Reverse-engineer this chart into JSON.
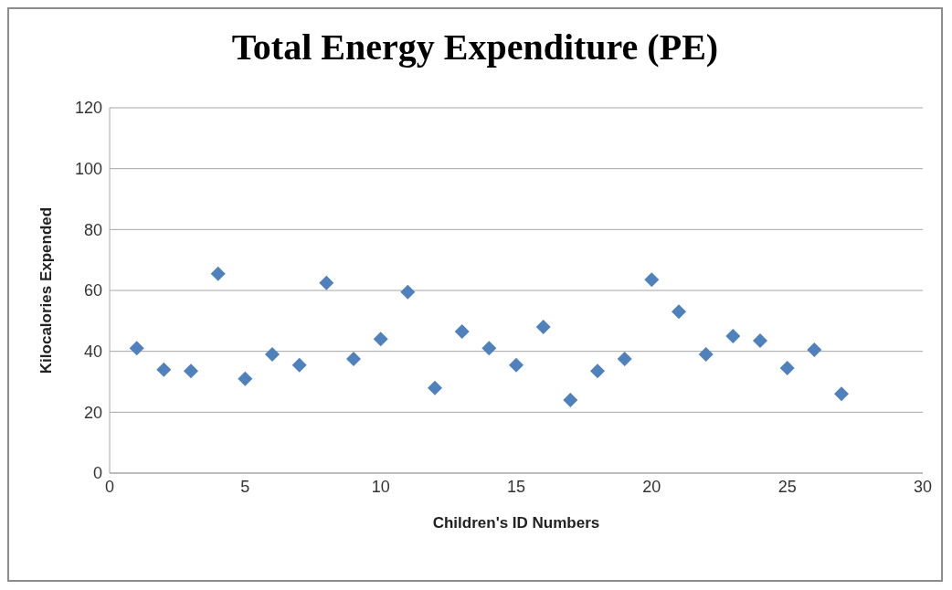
{
  "chart_data": {
    "type": "scatter",
    "title": "Total Energy Expenditure (PE)",
    "xlabel": "Children's ID Numbers",
    "ylabel": "Kilocalories Expended",
    "x": [
      1,
      2,
      3,
      4,
      5,
      6,
      7,
      8,
      9,
      10,
      11,
      12,
      13,
      14,
      15,
      16,
      17,
      18,
      19,
      20,
      21,
      22,
      23,
      24,
      25,
      26,
      27
    ],
    "series": [
      {
        "color": "#4f81bd",
        "values": [
          41,
          34,
          33.5,
          65.5,
          31,
          39,
          35.5,
          62.5,
          37.5,
          44,
          59.5,
          28,
          46.5,
          41,
          35.5,
          48,
          24,
          33.5,
          37.5,
          63.5,
          53,
          39,
          45,
          43.5,
          34.5,
          40.5,
          26
        ]
      }
    ],
    "xlim": [
      0,
      30
    ],
    "xticks": [
      0,
      5,
      10,
      15,
      20,
      25,
      30
    ],
    "ylim": [
      0,
      120
    ],
    "yticks": [
      0,
      20,
      40,
      60,
      80,
      100,
      120
    ],
    "grid": "y",
    "legend": false,
    "marker": "diamond"
  }
}
